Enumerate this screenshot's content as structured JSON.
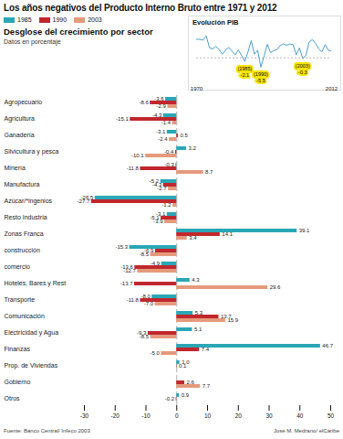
{
  "chart_data": [
    {
      "type": "bar",
      "orientation": "horizontal",
      "title": "Los años negativos del Producto Interno Bruto entre 1971 y 2012",
      "subtitle": "Desglose del crecimiento por sector",
      "units": "Datos en porcentaje",
      "source": "Fuente: Banco Central/ Infeco 2003",
      "credit": "José M. Medrano/ elCaribe",
      "categories": [
        "Agropecuario",
        "Agricultura",
        "Ganadería",
        "Silvicultura y pesca",
        "Minería",
        "Manufactura",
        "Azúcar/*ingenios",
        "Resto Industria",
        "Zonas Franca",
        "construcción",
        "comercio",
        "Hoteles, Bares y Rest",
        "Transporte",
        "Comunicación",
        "Electricidad y Agua",
        "Finanzas",
        "Prop. de Viviendas",
        "Gobierno",
        "Otros"
      ],
      "series": [
        {
          "name": "1985",
          "color": "#2aa7b5",
          "values": [
            -3.6,
            -4.3,
            -3.1,
            3.2,
            -0.3,
            -5.2,
            -26.5,
            -3.1,
            39.1,
            -15.3,
            -4.9,
            4.3,
            -8.0,
            5.3,
            5.1,
            46.7,
            1.0,
            null,
            0.9
          ],
          "value_labels": [
            "-3.6",
            "-4.3",
            "-3.1",
            "3.2",
            "-0.3",
            "-5.2",
            "-26.5",
            "-3.1",
            "39.1",
            "-15.3",
            "-4.9",
            "4.3",
            "-8.0",
            "5.3",
            "5.1",
            "46.7",
            "1.0",
            null,
            "0.9"
          ]
        },
        {
          "name": "1990",
          "color": "#c1272d",
          "values": [
            -8.6,
            -15.1,
            0.5,
            -0.4,
            -11.8,
            -4.3,
            -27.7,
            -5.1,
            14.1,
            -6.9,
            -13.6,
            -13.7,
            -11.8,
            13.7,
            -9.3,
            7.4,
            0.1,
            2.6,
            -0.2
          ],
          "value_labels": [
            "-8.6",
            "-15.1",
            "0.5",
            "-0.4",
            "-11.8",
            "-4.3",
            "-27.7",
            "-5.1",
            "14.1",
            "-6.9",
            "-13.6",
            "-13.7",
            "-11.8",
            "13.7",
            "-9.3",
            "7.4",
            "0.1",
            "2.6",
            "-0.2"
          ]
        },
        {
          "name": "2003",
          "color": "#e59a7c",
          "values": [
            -2.9,
            -1.4,
            -2.4,
            -10.1,
            8.7,
            -2.7,
            -1.2,
            -3.9,
            3.4,
            -8.5,
            -12.7,
            29.6,
            -7.0,
            15.9,
            -8.5,
            -5.0,
            null,
            7.7,
            null
          ],
          "value_labels": [
            "-2.9",
            "-1.4",
            "-2.4",
            "-10.1",
            "8.7",
            "-2.7",
            "-1.2",
            "-3.9",
            "3.4",
            "-8.5",
            "-12.7",
            "29.6",
            "-7.0",
            "15.9",
            "-8.5",
            "-5.0",
            null,
            "7.7",
            null
          ]
        }
      ],
      "xlim": [
        -30,
        50
      ],
      "xticks": [
        -30,
        -20,
        -10,
        0,
        10,
        20,
        30,
        40,
        50
      ],
      "data_labels": true,
      "legend": "top-left",
      "grid": false
    },
    {
      "type": "line",
      "title": "Evolución PIB",
      "x": [
        1970,
        1971,
        1972,
        1973,
        1974,
        1975,
        1976,
        1977,
        1978,
        1979,
        1980,
        1981,
        1982,
        1983,
        1984,
        1985,
        1986,
        1987,
        1988,
        1989,
        1990,
        1991,
        1992,
        1993,
        1994,
        1995,
        1996,
        1997,
        1998,
        1999,
        2000,
        2001,
        2002,
        2003,
        2004,
        2005,
        2006,
        2007,
        2008,
        2009,
        2010,
        2011,
        2012
      ],
      "values": [
        10.9,
        10.9,
        10.4,
        12.9,
        6.0,
        5.2,
        6.7,
        5.0,
        2.1,
        4.5,
        6.1,
        4.0,
        1.7,
        4.6,
        1.3,
        -2.1,
        3.5,
        10.1,
        2.2,
        4.4,
        -5.5,
        1.0,
        8.0,
        3.0,
        4.3,
        4.8,
        7.2,
        8.2,
        7.4,
        8.1,
        7.8,
        1.8,
        5.8,
        -0.3,
        1.3,
        9.3,
        10.7,
        8.5,
        5.3,
        3.5,
        7.8,
        4.5,
        3.9
      ],
      "color": "#4a9fd0",
      "xlim": [
        1970,
        2012
      ],
      "xticks": [
        1970,
        2012
      ],
      "ylim": [
        -12,
        16
      ],
      "tick_labels": "x",
      "annotations": [
        {
          "x": 1985,
          "label": "(1985)",
          "value_label": "-2.1"
        },
        {
          "x": 1990,
          "label": "(1990)",
          "value_label": "-5.5"
        },
        {
          "x": 2003,
          "label": "(2003)",
          "value_label": "-0.3"
        }
      ]
    }
  ]
}
